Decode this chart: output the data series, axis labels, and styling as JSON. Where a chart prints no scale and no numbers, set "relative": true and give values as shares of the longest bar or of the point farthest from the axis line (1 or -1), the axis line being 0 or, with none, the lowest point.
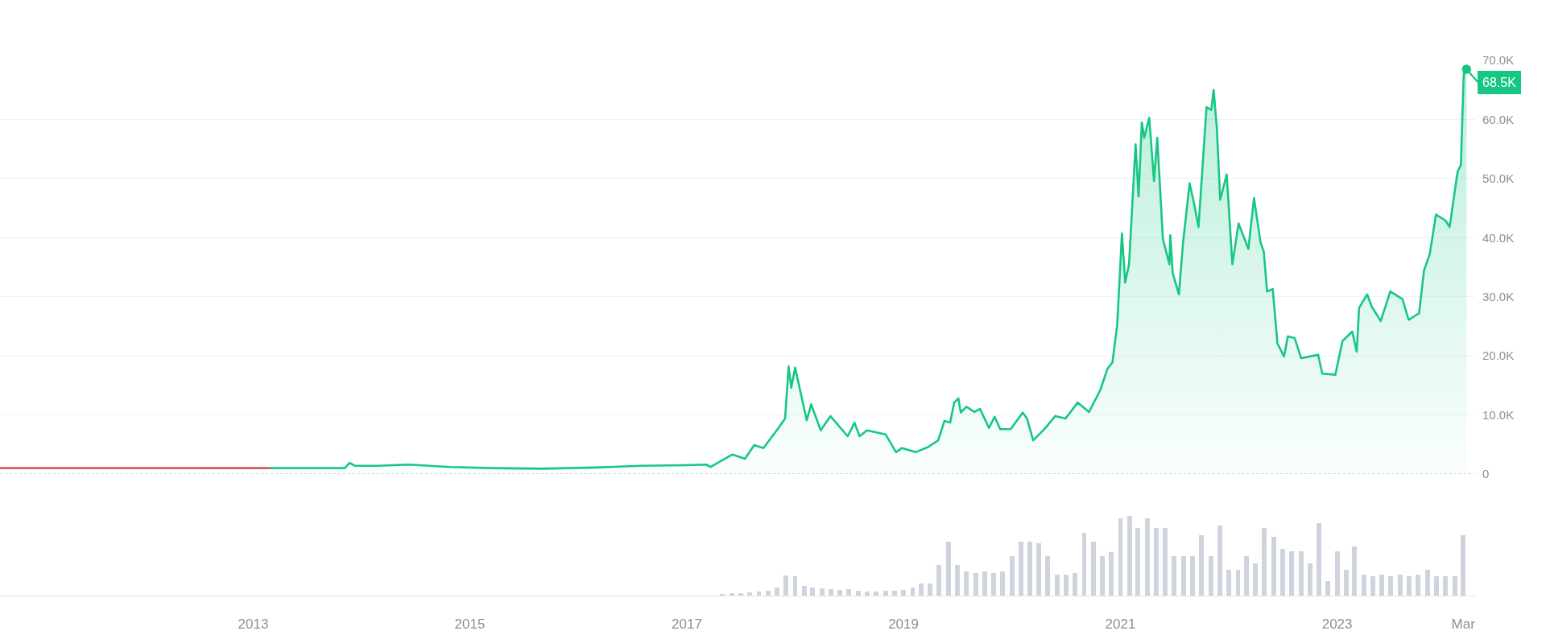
{
  "chart_data": [
    {
      "type": "area",
      "xlim": [
        "2010-09-01",
        "2024-04-10"
      ],
      "ylim": [
        0,
        70000
      ],
      "yticks": [
        0,
        {
          "value": 10000,
          "label": "10.0K"
        },
        {
          "value": 20000,
          "label": "20.0K"
        },
        {
          "value": 30000,
          "label": "30.0K"
        },
        {
          "value": 40000,
          "label": "40.0K"
        },
        {
          "value": 50000,
          "label": "50.0K"
        },
        {
          "value": 60000,
          "label": "60.0K"
        },
        {
          "value": 70000,
          "label": "70.0K"
        }
      ],
      "grid": "y",
      "tick_labels": "y",
      "ref_lines": [
        {
          "axis": "y",
          "value": 0,
          "line_style": "dotted",
          "color": "#c9ccd2"
        }
      ],
      "annotations": [
        {
          "text": "68.5K",
          "x": "2024-03-12",
          "y": 68500
        }
      ],
      "series": [
        {
          "type": "line",
          "color": "#cd5c5c",
          "x": [
            "2010-09-01",
            "2013-03-01"
          ],
          "values": [
            1000,
            1000
          ]
        },
        {
          "color": "#16c784",
          "x": [
            "2013-03-01",
            "2013-11-06",
            "2013-11-22",
            "2013-12-09",
            "2014-02-25",
            "2014-06-07",
            "2014-10-26",
            "2015-03-18",
            "2015-09-01",
            "2016-02-28",
            "2016-07-30",
            "2016-12-25",
            "2017-03-07",
            "2017-03-22",
            "2017-06-03",
            "2017-07-16",
            "2017-08-16",
            "2017-09-16",
            "2017-11-06",
            "2017-11-28",
            "2017-12-10",
            "2017-12-19",
            "2018-01-01",
            "2018-02-09",
            "2018-02-24",
            "2018-03-28",
            "2018-04-30",
            "2018-06-27",
            "2018-07-20",
            "2018-08-06",
            "2018-08-31",
            "2018-11-02",
            "2018-12-07",
            "2018-12-27",
            "2019-02-11",
            "2019-03-26",
            "2019-04-28",
            "2019-05-19",
            "2019-06-07",
            "2019-06-21",
            "2019-07-05",
            "2019-07-13",
            "2019-08-01",
            "2019-08-28",
            "2019-09-16",
            "2019-10-16",
            "2019-11-04",
            "2019-11-23",
            "2019-12-28",
            "2020-02-07",
            "2020-02-21",
            "2020-03-13",
            "2020-04-20",
            "2020-05-26",
            "2020-06-30",
            "2020-08-10",
            "2020-09-17",
            "2020-10-25",
            "2020-11-18",
            "2020-12-05",
            "2020-12-21",
            "2021-01-06",
            "2021-01-17",
            "2021-01-30",
            "2021-02-21",
            "2021-03-03",
            "2021-03-14",
            "2021-03-22",
            "2021-04-08",
            "2021-04-24",
            "2021-05-05",
            "2021-05-24",
            "2021-06-15",
            "2021-06-18",
            "2021-06-26",
            "2021-07-17",
            "2021-07-31",
            "2021-08-22",
            "2021-09-07",
            "2021-09-21",
            "2021-10-18",
            "2021-11-03",
            "2021-11-11",
            "2021-11-22",
            "2021-12-03",
            "2021-12-25",
            "2022-01-13",
            "2022-02-03",
            "2022-03-08",
            "2022-03-27",
            "2022-04-18",
            "2022-04-29",
            "2022-05-10",
            "2022-05-29",
            "2022-06-14",
            "2022-07-06",
            "2022-07-19",
            "2022-08-11",
            "2022-09-02",
            "2022-10-02",
            "2022-10-29",
            "2022-11-12",
            "2022-12-26",
            "2023-01-19",
            "2023-02-21",
            "2023-03-08",
            "2023-03-16",
            "2023-04-12",
            "2023-04-28",
            "2023-05-28",
            "2023-06-29",
            "2023-08-09",
            "2023-08-30",
            "2023-10-04",
            "2023-10-21",
            "2023-11-09",
            "2023-11-30",
            "2024-01-01",
            "2024-01-15",
            "2024-02-11",
            "2024-02-22",
            "2024-03-02",
            "2024-03-05",
            "2024-03-12"
          ],
          "values": [
            1000,
            1000,
            1900,
            1400,
            1400,
            1600,
            1200,
            1000,
            900,
            1100,
            1400,
            1500,
            1600,
            1200,
            3300,
            2600,
            4900,
            4400,
            7800,
            9400,
            18200,
            14600,
            18000,
            9100,
            11800,
            7400,
            9800,
            6400,
            8700,
            6400,
            7400,
            6700,
            3700,
            4400,
            3700,
            4600,
            5700,
            9000,
            8700,
            12100,
            12800,
            10400,
            11400,
            10500,
            11000,
            7800,
            9700,
            7600,
            7600,
            10400,
            9400,
            5700,
            7600,
            9800,
            9400,
            12100,
            10500,
            14200,
            17800,
            18900,
            25200,
            40700,
            32400,
            35500,
            55800,
            47000,
            59500,
            56900,
            60300,
            49600,
            56900,
            39800,
            35500,
            40400,
            34000,
            30400,
            39200,
            49200,
            45500,
            41800,
            62100,
            61600,
            65000,
            58400,
            46400,
            50700,
            35500,
            42400,
            38100,
            46700,
            39200,
            37600,
            30900,
            31300,
            22100,
            19900,
            23300,
            23000,
            19600,
            19900,
            20200,
            17000,
            16800,
            22500,
            24100,
            20700,
            28100,
            30400,
            28300,
            25900,
            30900,
            29600,
            26100,
            27200,
            34500,
            37200,
            43900,
            42900,
            41800,
            51200,
            52300,
            66900,
            69000,
            68500
          ]
        }
      ]
    },
    {
      "type": "bar",
      "relative": true,
      "xlim": [
        "2010-09-01",
        "2024-04-10"
      ],
      "xticks": [
        "2013",
        "2015",
        "2017",
        "2019",
        "2021",
        "2023",
        {
          "value": "2024-03",
          "label": "Mar"
        }
      ],
      "tick_labels": "x",
      "color": "#cfd3de",
      "x": [
        "2017-05",
        "2017-06",
        "2017-07",
        "2017-08",
        "2017-09",
        "2017-10",
        "2017-11",
        "2017-12",
        "2018-01",
        "2018-02",
        "2018-03",
        "2018-04",
        "2018-05",
        "2018-06",
        "2018-07",
        "2018-08",
        "2018-09",
        "2018-10",
        "2018-11",
        "2018-12",
        "2019-01",
        "2019-02",
        "2019-03",
        "2019-04",
        "2019-05",
        "2019-06",
        "2019-07",
        "2019-08",
        "2019-09",
        "2019-10",
        "2019-11",
        "2019-12",
        "2020-01",
        "2020-02",
        "2020-03",
        "2020-04",
        "2020-05",
        "2020-06",
        "2020-07",
        "2020-08",
        "2020-09",
        "2020-10",
        "2020-11",
        "2020-12",
        "2021-01",
        "2021-02",
        "2021-03",
        "2021-04",
        "2021-05",
        "2021-06",
        "2021-07",
        "2021-08",
        "2021-09",
        "2021-10",
        "2021-11",
        "2021-12",
        "2022-01",
        "2022-02",
        "2022-03",
        "2022-04",
        "2022-05",
        "2022-06",
        "2022-07",
        "2022-08",
        "2022-09",
        "2022-10",
        "2022-11",
        "2022-12",
        "2023-01",
        "2023-02",
        "2023-03",
        "2023-04",
        "2023-05",
        "2023-06",
        "2023-07",
        "2023-08",
        "2023-09",
        "2023-10",
        "2023-11",
        "2023-12",
        "2024-01",
        "2024-02",
        "2024-03"
      ],
      "values": [
        0.02,
        0.03,
        0.03,
        0.04,
        0.05,
        0.06,
        0.1,
        0.25,
        0.24,
        0.12,
        0.1,
        0.09,
        0.08,
        0.07,
        0.08,
        0.06,
        0.05,
        0.05,
        0.06,
        0.06,
        0.07,
        0.1,
        0.15,
        0.15,
        0.38,
        0.68,
        0.38,
        0.3,
        0.28,
        0.3,
        0.28,
        0.3,
        0.5,
        0.68,
        0.68,
        0.66,
        0.5,
        0.26,
        0.26,
        0.28,
        0.79,
        0.68,
        0.5,
        0.55,
        0.97,
        1.0,
        0.85,
        0.97,
        0.85,
        0.85,
        0.5,
        0.5,
        0.5,
        0.76,
        0.5,
        0.88,
        0.32,
        0.32,
        0.5,
        0.4,
        0.85,
        0.74,
        0.59,
        0.56,
        0.56,
        0.4,
        0.91,
        0.18,
        0.56,
        0.32,
        0.62,
        0.26,
        0.24,
        0.26,
        0.24,
        0.26,
        0.24,
        0.26,
        0.32,
        0.24,
        0.24,
        0.24,
        0.76
      ]
    }
  ]
}
